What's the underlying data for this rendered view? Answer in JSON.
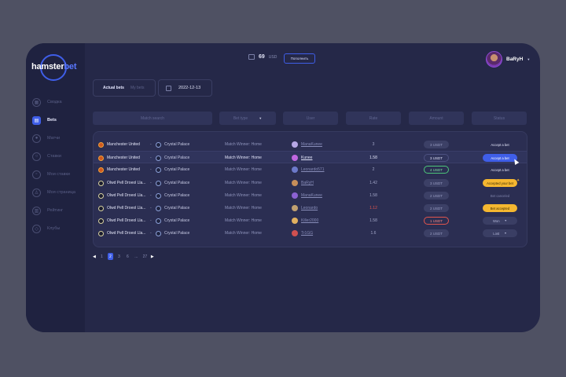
{
  "logo": {
    "text_a": "hamster",
    "text_b": "bet"
  },
  "sidebar": {
    "items": [
      {
        "label": "Сводка",
        "icon": "grid-icon",
        "active": false
      },
      {
        "label": "Bets",
        "icon": "bets-icon",
        "active": true
      },
      {
        "label": "Матчи",
        "icon": "ball-icon",
        "active": false
      },
      {
        "label": "Ставки",
        "icon": "coin-icon",
        "active": false
      },
      {
        "label": "Мои ставки",
        "icon": "ticket-icon",
        "active": false
      },
      {
        "label": "Моя страница",
        "icon": "user-icon",
        "active": false
      },
      {
        "label": "Рейтинг",
        "icon": "chart-icon",
        "active": false
      },
      {
        "label": "Клубы",
        "icon": "shield-icon",
        "active": false
      }
    ]
  },
  "header": {
    "balance_value": "69",
    "balance_currency": "USD",
    "topup_label": "Пополнить",
    "user_name": "BaRyH"
  },
  "tabs": {
    "actual": "Actual bets",
    "my": "My bets"
  },
  "date": "2022-12-13",
  "filters": {
    "match_search": "Match search",
    "bet_type": "Bet type",
    "user": "User",
    "rate": "Rate",
    "amount": "Amount",
    "status": "Status"
  },
  "rows": [
    {
      "team1": "Manchester United",
      "team2": "Crystal Palace",
      "market": "Match Winner: Home",
      "user": "ManaKunee",
      "rate": "3",
      "amount": "3 USDT",
      "status": "Accept a bet"
    },
    {
      "team1": "Manchester United",
      "team2": "Crystal Palace",
      "market": "Match Winner: Home",
      "user": "Kunee",
      "rate": "1.58",
      "amount": "3 USDT",
      "status": "Accept a bet"
    },
    {
      "team1": "Manchester United",
      "team2": "Crystal Palace",
      "market": "Match Winner: Home",
      "user": "Leonardo571",
      "rate": "2",
      "amount": "4 USDT",
      "status": "Accept a bet"
    },
    {
      "team1": "Olwd Pell Droeol Lla...",
      "team2": "Crystal Palace",
      "market": "Match Winner: Home",
      "user": "BaRyH",
      "rate": "1.42",
      "amount": "3 USDT",
      "status": "Accepted your bet"
    },
    {
      "team1": "Olwd Pell Droeol Lla...",
      "team2": "Crystal Palace",
      "market": "Match Winner: Home",
      "user": "ManaKunee",
      "rate": "1.58",
      "amount": "2 USDT",
      "status": "Bet canceled"
    },
    {
      "team1": "Olwd Pell Droeol Lla...",
      "team2": "Crystal Palace",
      "market": "Match Winner: Home",
      "user": "Leonardo",
      "rate": "1.12",
      "amount": "2 USDT",
      "status": "Bet accepted"
    },
    {
      "team1": "Olwd Pell Droeol Lla...",
      "team2": "Crystal Palace",
      "market": "Match Winner: Home",
      "user": "Killer2000",
      "rate": "1.58",
      "amount": "1 USDT",
      "status": "Won"
    },
    {
      "team1": "Olwd Pell Droeol Lla...",
      "team2": "Crystal Palace",
      "market": "Match Winner: Home",
      "user": "Tr1GG",
      "rate": "1.6",
      "amount": "2 USDT",
      "status": "Lost"
    }
  ],
  "pagination": {
    "pages": [
      "1",
      "2",
      "3",
      "6",
      "...",
      "27"
    ],
    "active": "2"
  },
  "colors": {
    "accent": "#3f5ee8",
    "warning": "#f5b730",
    "success": "#4dc77a",
    "danger": "#e2554d"
  }
}
